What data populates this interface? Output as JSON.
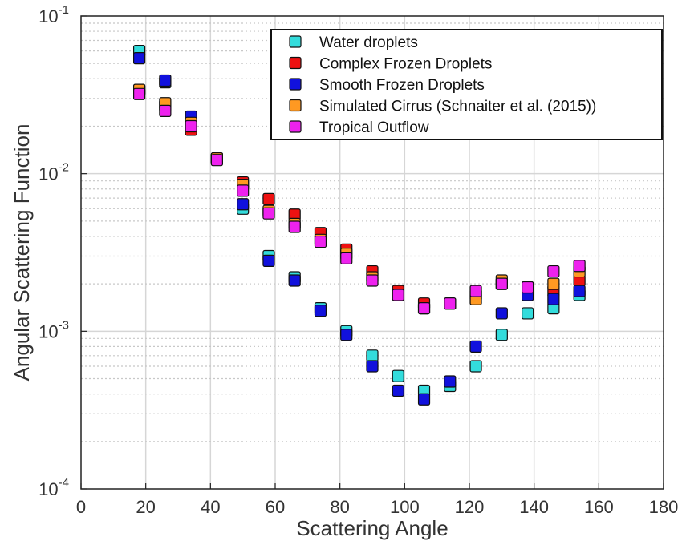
{
  "chart_data": {
    "type": "scatter",
    "xlabel": "Scattering Angle",
    "ylabel": "Angular Scattering Function",
    "xlim": [
      0,
      180
    ],
    "ylim": [
      0.0001,
      0.1
    ],
    "yscale": "log",
    "xticks": [
      "0",
      "20",
      "40",
      "60",
      "80",
      "100",
      "120",
      "140",
      "160",
      "180"
    ],
    "yticks": [
      {
        "base": "10",
        "exp": "-4"
      },
      {
        "base": "10",
        "exp": "-3"
      },
      {
        "base": "10",
        "exp": "-2"
      },
      {
        "base": "10",
        "exp": "-1"
      }
    ],
    "grid": true,
    "legend_position": "top-right",
    "series": [
      {
        "name": "Water droplets",
        "color": "#33dcdc",
        "x": [
          18,
          26,
          34,
          42,
          50,
          58,
          66,
          74,
          82,
          90,
          98,
          106,
          114,
          122,
          130,
          138,
          146,
          154
        ],
        "y": [
          0.06,
          0.038,
          0.022,
          0.0125,
          0.006,
          0.003,
          0.0022,
          0.0014,
          0.001,
          0.0007,
          0.00052,
          0.00042,
          0.00045,
          0.0006,
          0.00095,
          0.0013,
          0.0014,
          0.0017
        ]
      },
      {
        "name": "Complex Frozen Droplets",
        "color": "#ee1111",
        "x": [
          18,
          26,
          34,
          42,
          50,
          58,
          66,
          74,
          82,
          90,
          98,
          106,
          114,
          122,
          130,
          138,
          146,
          154
        ],
        "y": [
          0.034,
          0.027,
          0.019,
          0.0125,
          0.0088,
          0.0069,
          0.0055,
          0.0042,
          0.0033,
          0.0024,
          0.0018,
          0.0015,
          0.0015,
          0.0017,
          0.002,
          0.0019,
          0.0018,
          0.0021
        ]
      },
      {
        "name": "Smooth Frozen Droplets",
        "color": "#1111dd",
        "x": [
          18,
          26,
          34,
          42,
          50,
          58,
          66,
          74,
          82,
          90,
          98,
          106,
          114,
          122,
          130,
          138,
          146,
          154
        ],
        "y": [
          0.054,
          0.039,
          0.023,
          0.0125,
          0.0064,
          0.0028,
          0.0021,
          0.00135,
          0.00095,
          0.0006,
          0.00042,
          0.00037,
          0.00048,
          0.0008,
          0.0013,
          0.0017,
          0.0016,
          0.0018
        ]
      },
      {
        "name": "Simulated Cirrus (Schnaiter et al. (2015))",
        "color": "#ff9922",
        "x": [
          18,
          26,
          34,
          42,
          50,
          58,
          66,
          74,
          82,
          90,
          98,
          106,
          114,
          122,
          130,
          138,
          146,
          154
        ],
        "y": [
          0.034,
          0.028,
          0.021,
          0.0125,
          0.0085,
          0.0058,
          0.0048,
          0.0038,
          0.0031,
          0.0022,
          0.0017,
          0.0014,
          0.0015,
          0.0016,
          0.0021,
          0.0019,
          0.002,
          0.0024
        ]
      },
      {
        "name": "Tropical Outflow",
        "color": "#ee22ee",
        "x": [
          18,
          26,
          34,
          42,
          50,
          58,
          66,
          74,
          82,
          90,
          98,
          106,
          114,
          122,
          130,
          138,
          146,
          154
        ],
        "y": [
          0.032,
          0.025,
          0.02,
          0.0122,
          0.0078,
          0.0056,
          0.0046,
          0.0037,
          0.0029,
          0.0021,
          0.0017,
          0.0014,
          0.0015,
          0.0018,
          0.002,
          0.0019,
          0.0024,
          0.0026
        ]
      }
    ]
  }
}
